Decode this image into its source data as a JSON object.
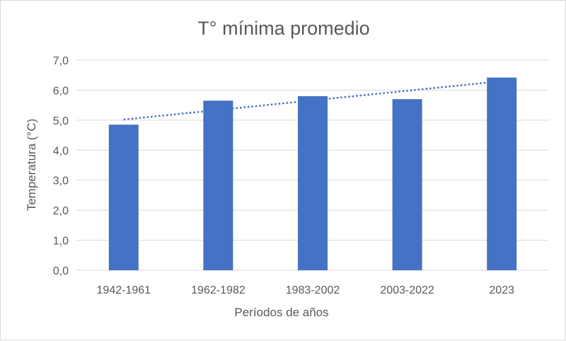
{
  "chart_data": {
    "type": "bar",
    "title": "T° mínima promedio",
    "xlabel": "Períodos de años",
    "ylabel": "Temperatura (°C)",
    "categories": [
      "1942-1961",
      "1962-1982",
      "1983-2002",
      "2003-2022",
      "2023"
    ],
    "series": [
      {
        "values": [
          4.85,
          5.65,
          5.8,
          5.7,
          6.42
        ]
      }
    ],
    "trendline": {
      "type": "linear",
      "style": "dotted",
      "start": 5.02,
      "end": 6.3
    },
    "ylim": [
      0,
      7
    ],
    "yticks": [
      "0,0",
      "1,0",
      "2,0",
      "3,0",
      "4,0",
      "5,0",
      "6,0",
      "7,0"
    ],
    "grid": true,
    "legend": "none",
    "colors": {
      "bar": "#4472c4",
      "trend": "#4472c4",
      "grid": "#d9d9d9",
      "text": "#595959"
    }
  }
}
